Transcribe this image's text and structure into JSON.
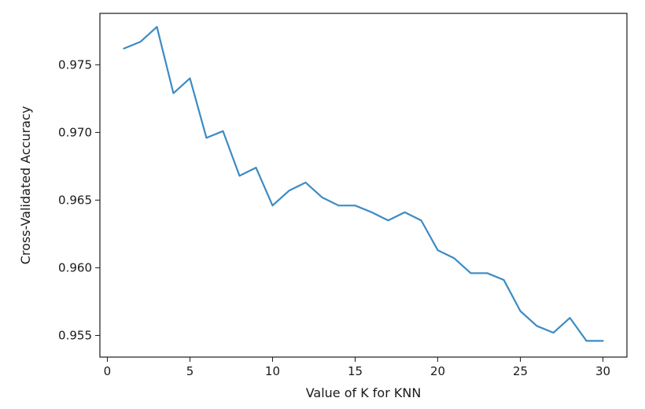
{
  "chart_data": {
    "type": "line",
    "title": "",
    "xlabel": "Value of K for KNN",
    "ylabel": "Cross-Validated Accuracy",
    "xlim": [
      -0.45,
      31.45
    ],
    "ylim": [
      0.9534,
      0.9788
    ],
    "grid": false,
    "legend": "none",
    "x_ticks": [
      0,
      5,
      10,
      15,
      20,
      25,
      30
    ],
    "x_tick_labels": [
      "0",
      "5",
      "10",
      "15",
      "20",
      "25",
      "30"
    ],
    "y_ticks": [
      0.955,
      0.96,
      0.965,
      0.97,
      0.975
    ],
    "y_tick_labels": [
      "0.955",
      "0.960",
      "0.965",
      "0.970",
      "0.975"
    ],
    "series": [
      {
        "name": "",
        "color": "#3c8bc4",
        "x": [
          1,
          2,
          3,
          4,
          5,
          6,
          7,
          8,
          9,
          10,
          11,
          12,
          13,
          14,
          15,
          16,
          17,
          18,
          19,
          20,
          21,
          22,
          23,
          24,
          25,
          26,
          27,
          28,
          29,
          30
        ],
        "y": [
          0.9762,
          0.9767,
          0.9778,
          0.9729,
          0.974,
          0.9696,
          0.9701,
          0.9668,
          0.9674,
          0.9646,
          0.9657,
          0.9663,
          0.9652,
          0.9646,
          0.9646,
          0.9641,
          0.9635,
          0.9641,
          0.9635,
          0.9613,
          0.9607,
          0.9596,
          0.9596,
          0.9591,
          0.9568,
          0.9557,
          0.9552,
          0.9563,
          0.9546,
          0.9546
        ]
      }
    ]
  }
}
